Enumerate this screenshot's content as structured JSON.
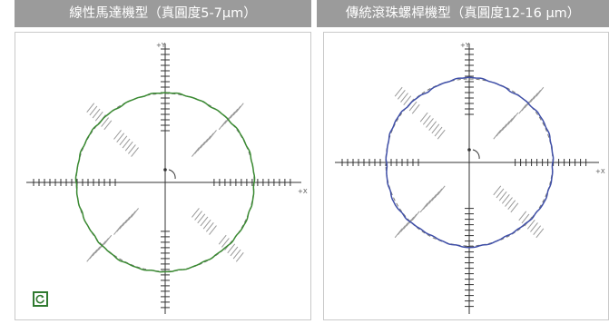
{
  "colors": {
    "title_bar": "#9b9b9b",
    "linear_motor_trace": "#3a8a32",
    "ball_screw_trace": "#3f4fa8",
    "axis": "#333333",
    "hatch": "#9a9a9a",
    "reference_circle": "#777777"
  },
  "panels": [
    {
      "title": "線性馬達機型（真圓度5-7μm）",
      "y_axis_label": "+Y",
      "x_axis_label": "+X",
      "has_reset_icon": true,
      "reset_icon_name": "rotate-icon"
    },
    {
      "title": "傳統滾珠螺桿機型（真圓度12-16 μm）",
      "y_axis_label": "+Y",
      "x_axis_label": "+X",
      "has_reset_icon": false
    }
  ],
  "chart_data": [
    {
      "type": "scatter",
      "title": "線性馬達機型（真圓度5-7μm）",
      "xlabel": "+X",
      "ylabel": "+Y",
      "roundness_um": [
        5,
        7
      ],
      "series": [
        {
          "values": [
            1.0,
            1.02,
            0.99,
            1.03,
            0.98,
            1.02,
            1.0,
            0.99,
            1.03,
            1.01,
            0.98,
            1.02
          ]
        }
      ],
      "grid": false
    },
    {
      "type": "scatter",
      "title": "傳統滾珠螺桿機型（真圓度12-16 μm）",
      "xlabel": "+X",
      "ylabel": "+Y",
      "roundness_um": [
        12,
        16
      ],
      "series": [
        {
          "values": [
            1.0,
            1.05,
            0.96,
            1.06,
            0.95,
            1.04,
            0.97,
            1.06,
            0.95,
            1.05,
            0.96,
            1.04
          ]
        }
      ],
      "grid": false
    }
  ]
}
